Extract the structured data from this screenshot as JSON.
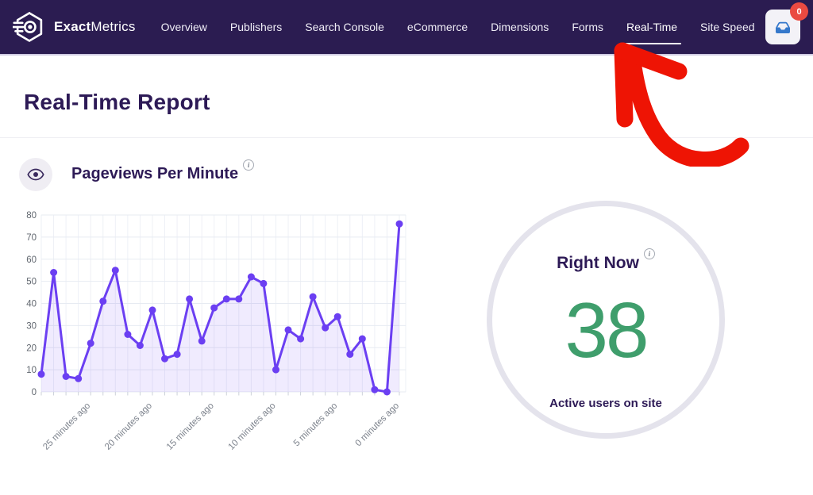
{
  "nav": {
    "brand_bold": "Exact",
    "brand_rest": "Metrics",
    "items": [
      {
        "label": "Overview",
        "active": false
      },
      {
        "label": "Publishers",
        "active": false
      },
      {
        "label": "Search Console",
        "active": false
      },
      {
        "label": "eCommerce",
        "active": false
      },
      {
        "label": "Dimensions",
        "active": false
      },
      {
        "label": "Forms",
        "active": false
      },
      {
        "label": "Real-Time",
        "active": true
      },
      {
        "label": "Site Speed",
        "active": false
      }
    ],
    "inbox_badge_count": "0"
  },
  "page": {
    "title": "Real-Time Report"
  },
  "pageviews_section": {
    "title": "Pageviews Per Minute",
    "info_glyph": "i",
    "icon": "eye-icon"
  },
  "right_now": {
    "title": "Right Now",
    "info_glyph": "i",
    "value": "38",
    "caption": "Active users on site"
  },
  "colors": {
    "nav_bg": "#2b1c51",
    "heading": "#2d1a56",
    "line": "#6b3ff2",
    "line_fill": "rgba(107,63,242,0.10)",
    "grid": "#e7ebf2",
    "grid_vertical": "#eef0f6",
    "tick": "#ccd1da",
    "axis_label": "#60666e",
    "x_label": "#7c828c",
    "green_value": "#3f9e6c",
    "badge_red": "#ea4a41",
    "inbox_blue": "#3578cb",
    "arrow_red": "#ee1404"
  },
  "chart_data": {
    "type": "line",
    "title": "Pageviews Per Minute",
    "xlabel": "",
    "ylabel": "",
    "ylim": [
      0,
      80
    ],
    "y_ticks": [
      0,
      10,
      20,
      30,
      40,
      50,
      60,
      70,
      80
    ],
    "grid": true,
    "legend": "none",
    "x": [
      "29 min ago",
      "28 min ago",
      "27 min ago",
      "26 min ago",
      "25 minutes ago",
      "24 min ago",
      "23 min ago",
      "22 min ago",
      "21 min ago",
      "20 minutes ago",
      "19 min ago",
      "18 min ago",
      "17 min ago",
      "16 min ago",
      "15 minutes ago",
      "14 min ago",
      "13 min ago",
      "12 min ago",
      "11 min ago",
      "10 minutes ago",
      "9 min ago",
      "8 min ago",
      "7 min ago",
      "6 min ago",
      "5 minutes ago",
      "4 min ago",
      "3 min ago",
      "2 min ago",
      "1 min ago",
      "0 minutes ago"
    ],
    "x_tick_labels": [
      "25 minutes ago",
      "20 minutes ago",
      "15 minutes ago",
      "10 minutes ago",
      "5 minutes ago",
      "0 minutes ago"
    ],
    "x_tick_indices": [
      4,
      9,
      14,
      19,
      24,
      29
    ],
    "values": [
      8,
      54,
      7,
      6,
      22,
      41,
      55,
      26,
      21,
      37,
      15,
      17,
      42,
      23,
      38,
      42,
      42,
      52,
      49,
      10,
      28,
      24,
      43,
      29,
      34,
      17,
      24,
      1,
      0,
      76
    ]
  }
}
